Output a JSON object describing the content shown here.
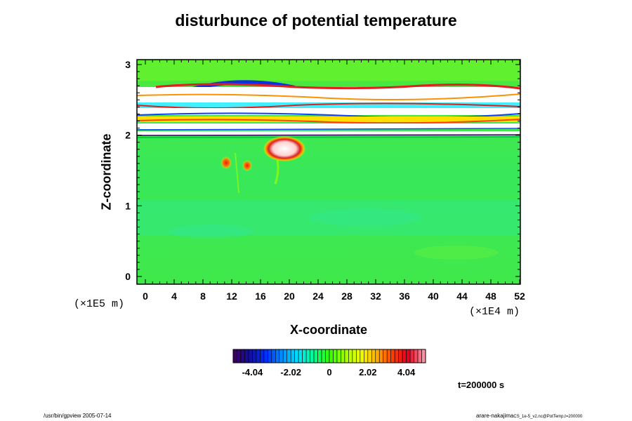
{
  "chart_data": {
    "type": "heatmap",
    "title": "disturbunce of potential temperature",
    "xlabel": "X-coordinate",
    "ylabel": "Z-coordinate",
    "x_unit": "(×1E4 m)",
    "y_unit": "(×1E5 m)",
    "xlim": [
      0,
      52
    ],
    "ylim": [
      0,
      3
    ],
    "x_ticks": [
      "0",
      "4",
      "8",
      "12",
      "16",
      "20",
      "24",
      "28",
      "32",
      "36",
      "40",
      "44",
      "48",
      "52"
    ],
    "y_ticks": [
      "0",
      "1",
      "2",
      "3"
    ],
    "colorbar": {
      "tick_labels": [
        "-4.04",
        "-2.02",
        "0",
        "2.02",
        "4.04"
      ],
      "tick_values": [
        -4.04,
        -2.02,
        0,
        2.02,
        4.04
      ],
      "range": [
        -5.05,
        5.05
      ],
      "colors": [
        "#3a0060",
        "#1010a0",
        "#0030ff",
        "#0090ff",
        "#00e0ff",
        "#00ff90",
        "#30ff00",
        "#a0ff00",
        "#f0ff00",
        "#ffb000",
        "#ff4000",
        "#e00020",
        "#ff90a0"
      ]
    },
    "features": [
      {
        "desc": "near-zero background",
        "z_range": [
          0,
          1.95
        ],
        "value": 0.3
      },
      {
        "desc": "strongly disturbed layer",
        "z_range": [
          1.95,
          2.8
        ],
        "value": "saturated"
      },
      {
        "desc": "warm plume",
        "x": 20,
        "z": 1.8,
        "value": 4.5
      },
      {
        "desc": "warm plume",
        "x": 12,
        "z": 1.6,
        "value": 3.5
      }
    ]
  },
  "time_label": "t=200000 s",
  "footer_left": "/usr/bin/gpview 2005-07-14",
  "footer_right_main": "arare-nakajima",
  "footer_right_small": "CS_1e-5_v2.nc@PotTemp,t=200000"
}
